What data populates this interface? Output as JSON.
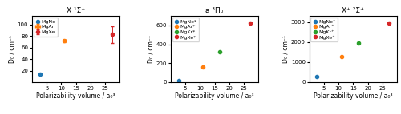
{
  "chart_data": [
    {
      "type": "scatter",
      "title": "X ¹Σ⁺",
      "x_label": "Polarizability volume / a₀³",
      "y_label": "D₀ / cm⁻¹",
      "series": [
        {
          "name": "MgNe",
          "color": "#1f77b4",
          "marker": "o",
          "x": [
            2.67
          ],
          "values": [
            13.3
          ]
        },
        {
          "name": "MgAr",
          "color": "#ff7f0e",
          "marker": "o",
          "x": [
            11.1
          ],
          "values": [
            71.5
          ],
          "xerr": [
            0.5
          ],
          "yerr": [
            2.5
          ]
        },
        {
          "name": "MgXe",
          "color": "#d62728",
          "marker": "o",
          "x": [
            27.3
          ],
          "values": [
            82.5
          ],
          "yerr": [
            14
          ]
        }
      ],
      "xlim": [
        0,
        30
      ],
      "ylim": [
        0,
        115
      ],
      "xticks": [
        5,
        10,
        15,
        20,
        25
      ],
      "yticks": [
        20,
        40,
        60,
        80,
        100
      ],
      "legend": "upper left"
    },
    {
      "type": "scatter",
      "title": "a ³Π₀",
      "x_label": "Polarizability volume / a₀³",
      "y_label": "D₀ / cm⁻¹",
      "series": [
        {
          "name": "MgNe*",
          "color": "#1f77b4",
          "marker": "o",
          "x": [
            2.67
          ],
          "values": [
            17
          ]
        },
        {
          "name": "MgAr*",
          "color": "#ff7f0e",
          "marker": "o",
          "x": [
            11.1
          ],
          "values": [
            162
          ]
        },
        {
          "name": "MgKr*",
          "color": "#2ca02c",
          "marker": "o",
          "x": [
            16.8
          ],
          "values": [
            318
          ]
        },
        {
          "name": "MgXe*",
          "color": "#d62728",
          "marker": "o",
          "x": [
            27.3
          ],
          "values": [
            625
          ]
        }
      ],
      "xlim": [
        0,
        30
      ],
      "ylim": [
        0,
        700
      ],
      "xticks": [
        5,
        10,
        15,
        20,
        25
      ],
      "yticks": [
        0,
        200,
        400,
        600
      ],
      "legend": "upper left"
    },
    {
      "type": "scatter",
      "title": "X⁺ ²Σ⁺",
      "x_label": "Polarizability volume / a₀³",
      "y_label": "D₀ / cm⁻¹",
      "series": [
        {
          "name": "MgNe⁺",
          "color": "#1f77b4",
          "marker": "o",
          "x": [
            2.67
          ],
          "values": [
            290
          ]
        },
        {
          "name": "MgAr⁺",
          "color": "#ff7f0e",
          "marker": "o",
          "x": [
            11.1
          ],
          "values": [
            1260
          ]
        },
        {
          "name": "MgKr⁺",
          "color": "#2ca02c",
          "marker": "o",
          "x": [
            16.8
          ],
          "values": [
            1960
          ]
        },
        {
          "name": "MgXe⁺",
          "color": "#d62728",
          "marker": "o",
          "x": [
            27.3
          ],
          "values": [
            2960
          ]
        }
      ],
      "xlim": [
        0,
        30
      ],
      "ylim": [
        0,
        3300
      ],
      "xticks": [
        5,
        10,
        15,
        20,
        25
      ],
      "yticks": [
        0,
        1000,
        2000,
        3000
      ],
      "legend": "upper left"
    }
  ]
}
